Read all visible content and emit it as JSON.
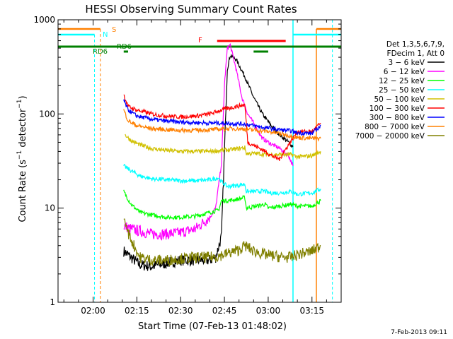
{
  "chart_data": {
    "type": "line",
    "title": "HESSI Observing Summary Count Rates",
    "xlabel": "Start Time (07-Feb-13 01:48:02)",
    "ylabel": "Count Rate (s⁻¹ detector⁻¹)",
    "ylabel_parts": {
      "main": "Count Rate (s",
      "exp1": "−1",
      "mid": " detector",
      "exp2": "−1",
      "end": ")"
    },
    "yscale": "log",
    "ylim": [
      1,
      1000
    ],
    "xlim_minutes": [
      108,
      205
    ],
    "y_ticks": [
      {
        "v": 1,
        "label": "1"
      },
      {
        "v": 10,
        "label": "10"
      },
      {
        "v": 100,
        "label": "100"
      },
      {
        "v": 1000,
        "label": "1000"
      }
    ],
    "x_ticks": [
      {
        "m": 120,
        "label": "02:00"
      },
      {
        "m": 135,
        "label": "02:15"
      },
      {
        "m": 150,
        "label": "02:30"
      },
      {
        "m": 165,
        "label": "02:45"
      },
      {
        "m": 180,
        "label": "03:00"
      },
      {
        "m": 195,
        "label": "03:15"
      }
    ],
    "legend_header": [
      "Det 1,3,5,6,7,9,",
      "FDecim 1, Att 0"
    ],
    "legend_entries": [
      {
        "label": "3 − 6 keV",
        "color": "#000000"
      },
      {
        "label": "6 − 12 keV",
        "color": "#ff00ff"
      },
      {
        "label": "12 − 25 keV",
        "color": "#00ff00"
      },
      {
        "label": "25 − 50 keV",
        "color": "#00ffff"
      },
      {
        "label": "50 − 100 keV",
        "color": "#d0c000"
      },
      {
        "label": "100 − 300 keV",
        "color": "#ff0000"
      },
      {
        "label": "300 − 800 keV",
        "color": "#0000ff"
      },
      {
        "label": "800 − 7000 keV",
        "color": "#ff8000"
      },
      {
        "label": "7000 − 20000 keV",
        "color": "#808000"
      }
    ],
    "flag_labels": {
      "S": "S",
      "N": "N",
      "F": "F",
      "RD6a": "RD6",
      "RD6b": "RD6"
    },
    "series": [
      {
        "name": "3 − 6 keV",
        "color": "#000000",
        "points": [
          [
            130.5,
            3.5
          ],
          [
            133,
            3
          ],
          [
            136,
            2.5
          ],
          [
            140,
            2.4
          ],
          [
            145,
            2.6
          ],
          [
            150,
            2.8
          ],
          [
            155,
            2.8
          ],
          [
            160,
            2.8
          ],
          [
            162,
            3
          ],
          [
            164,
            5
          ],
          [
            165,
            40
          ],
          [
            166,
            300
          ],
          [
            167,
            420
          ],
          [
            169,
            380
          ],
          [
            172,
            250
          ],
          [
            175,
            150
          ],
          [
            178,
            100
          ],
          [
            181,
            75
          ],
          [
            184,
            60
          ],
          [
            187,
            50
          ],
          [
            188.5,
            45
          ]
        ]
      },
      {
        "name": "6 − 12 keV",
        "color": "#ff00ff",
        "points": [
          [
            130.5,
            6.5
          ],
          [
            133,
            6
          ],
          [
            136,
            5.7
          ],
          [
            140,
            5.3
          ],
          [
            145,
            5.3
          ],
          [
            150,
            5.5
          ],
          [
            155,
            6
          ],
          [
            160,
            8
          ],
          [
            162,
            10
          ],
          [
            164,
            30
          ],
          [
            165,
            200
          ],
          [
            166,
            500
          ],
          [
            167,
            540
          ],
          [
            169,
            300
          ],
          [
            171,
            150
          ],
          [
            173,
            100
          ],
          [
            175,
            80
          ],
          [
            178,
            55
          ],
          [
            181,
            48
          ],
          [
            184,
            43
          ],
          [
            187,
            36
          ],
          [
            188.5,
            28
          ]
        ]
      },
      {
        "name": "12 − 25 keV",
        "color": "#00ff00",
        "points": [
          [
            130.5,
            15
          ],
          [
            133,
            11
          ],
          [
            136,
            9
          ],
          [
            140,
            8.5
          ],
          [
            145,
            8
          ],
          [
            150,
            8
          ],
          [
            155,
            8.2
          ],
          [
            160,
            9
          ],
          [
            163,
            9.5
          ],
          [
            164,
            12
          ],
          [
            166,
            12
          ],
          [
            170,
            12.5
          ],
          [
            172,
            13
          ],
          [
            172.5,
            10
          ],
          [
            176,
            10.5
          ],
          [
            179,
            11
          ],
          [
            180,
            10
          ],
          [
            184,
            10.5
          ],
          [
            188,
            11
          ],
          [
            190,
            10.5
          ],
          [
            195,
            10.5
          ],
          [
            198,
            12
          ]
        ]
      },
      {
        "name": "25 − 50 keV",
        "color": "#00ffff",
        "points": [
          [
            130.5,
            28
          ],
          [
            133,
            25
          ],
          [
            136,
            22
          ],
          [
            140,
            20.5
          ],
          [
            145,
            20
          ],
          [
            150,
            19.5
          ],
          [
            155,
            19.5
          ],
          [
            160,
            20
          ],
          [
            163,
            21
          ],
          [
            164,
            19
          ],
          [
            166,
            17
          ],
          [
            170,
            17.5
          ],
          [
            172,
            18
          ],
          [
            172.5,
            15
          ],
          [
            176,
            15
          ],
          [
            179,
            15.2
          ],
          [
            180,
            14.5
          ],
          [
            184,
            14.5
          ],
          [
            188,
            15
          ],
          [
            190,
            14
          ],
          [
            195,
            14.5
          ],
          [
            198,
            16
          ]
        ]
      },
      {
        "name": "50 − 100 keV",
        "color": "#d0c000",
        "points": [
          [
            131,
            60
          ],
          [
            133,
            52
          ],
          [
            136,
            47
          ],
          [
            140,
            43
          ],
          [
            145,
            41
          ],
          [
            150,
            40
          ],
          [
            155,
            40
          ],
          [
            160,
            40
          ],
          [
            164,
            41
          ],
          [
            168,
            42
          ],
          [
            172,
            44
          ],
          [
            172.5,
            38
          ],
          [
            176,
            38
          ],
          [
            180,
            37
          ],
          [
            184,
            37
          ],
          [
            188,
            37
          ],
          [
            190,
            35
          ],
          [
            195,
            36
          ],
          [
            198,
            40
          ]
        ]
      },
      {
        "name": "100 − 300 keV",
        "color": "#ff0000",
        "points": [
          [
            130.5,
            160
          ],
          [
            132,
            120
          ],
          [
            135,
            110
          ],
          [
            140,
            100
          ],
          [
            145,
            95
          ],
          [
            150,
            93
          ],
          [
            155,
            95
          ],
          [
            160,
            100
          ],
          [
            164,
            110
          ],
          [
            168,
            118
          ],
          [
            172,
            125
          ],
          [
            173,
            50
          ],
          [
            176,
            45
          ],
          [
            179,
            40
          ],
          [
            180,
            38
          ],
          [
            182,
            35
          ],
          [
            184,
            33
          ],
          [
            185,
            38
          ],
          [
            190,
            65
          ],
          [
            195,
            65
          ],
          [
            198,
            80
          ]
        ]
      },
      {
        "name": "300 − 800 keV",
        "color": "#0000ff",
        "points": [
          [
            130.5,
            140
          ],
          [
            132,
            110
          ],
          [
            135,
            95
          ],
          [
            140,
            88
          ],
          [
            145,
            84
          ],
          [
            150,
            82
          ],
          [
            155,
            81
          ],
          [
            160,
            80
          ],
          [
            164,
            80
          ],
          [
            168,
            79
          ],
          [
            172,
            78
          ],
          [
            175,
            75
          ],
          [
            178,
            72
          ],
          [
            181,
            70
          ],
          [
            184,
            68
          ],
          [
            188,
            66
          ],
          [
            190,
            63
          ],
          [
            195,
            62
          ],
          [
            198,
            75
          ]
        ]
      },
      {
        "name": "800 − 7000 keV",
        "color": "#ff8000",
        "points": [
          [
            130.5,
            110
          ],
          [
            132,
            85
          ],
          [
            135,
            75
          ],
          [
            140,
            70
          ],
          [
            145,
            68
          ],
          [
            150,
            67
          ],
          [
            155,
            67
          ],
          [
            160,
            68
          ],
          [
            164,
            69
          ],
          [
            168,
            70
          ],
          [
            172,
            69
          ],
          [
            176,
            67
          ],
          [
            180,
            65
          ],
          [
            184,
            62
          ],
          [
            188,
            58
          ],
          [
            190,
            56
          ],
          [
            195,
            55
          ],
          [
            198,
            55
          ]
        ]
      },
      {
        "name": "7000 − 20000 keV",
        "color": "#808000",
        "points": [
          [
            130.5,
            8
          ],
          [
            132,
            5.5
          ],
          [
            134,
            4
          ],
          [
            136,
            3
          ],
          [
            140,
            2.8
          ],
          [
            145,
            2.8
          ],
          [
            150,
            2.9
          ],
          [
            155,
            3
          ],
          [
            160,
            3
          ],
          [
            163,
            3.1
          ],
          [
            166,
            3.3
          ],
          [
            170,
            3.6
          ],
          [
            172,
            4
          ],
          [
            175,
            3.5
          ],
          [
            179,
            3.2
          ],
          [
            182,
            3.1
          ],
          [
            185,
            3
          ],
          [
            188,
            3
          ],
          [
            190,
            3.2
          ],
          [
            195,
            3.5
          ],
          [
            198,
            4
          ]
        ]
      }
    ],
    "flags": {
      "saa": {
        "label": "S",
        "color": "#ff8000"
      },
      "night": {
        "label": "N",
        "color": "#00ffff"
      },
      "flare": {
        "label": "F",
        "color": "#ff0000"
      },
      "rd6": {
        "label": "RD6",
        "color": "#008000"
      }
    }
  },
  "footer": {
    "timestamp": "7-Feb-2013 09:11"
  }
}
